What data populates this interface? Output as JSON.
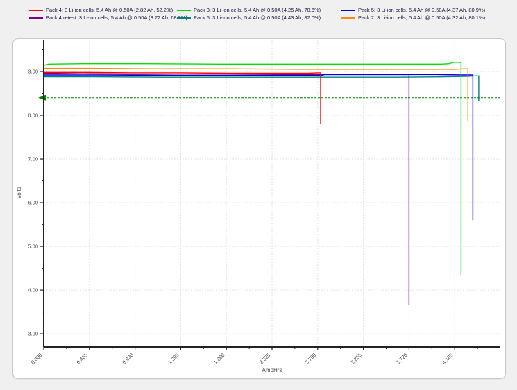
{
  "legend": {
    "items": [
      {
        "label": "Pack 4: 3 Li-ion cells, 5.4 Ah @ 0.50A (2.82 Ah, 52.2%)",
        "color": "#ff0000"
      },
      {
        "label": "Pack 3: 3 Li-ion cells, 5.4 Ah @ 0.50A (4.25 Ah, 78.6%)",
        "color": "#00e000"
      },
      {
        "label": "Pack 5: 3 Li-ion cells, 5.4 Ah @ 0.50A (4.37 Ah, 80.9%)",
        "color": "#0000d8"
      },
      {
        "label": "Pack 4 retest: 3 Li-ion cells, 5.4 Ah @ 0.50A (3.72 Ah, 68.9%)",
        "color": "#800080"
      },
      {
        "label": "Pack 6: 3 Li-ion cells, 5.4 Ah @ 0.50A (4.43 Ah, 82.0%)",
        "color": "#008080"
      },
      {
        "label": "Pack 2: 3 Li-ion cells, 5.4 Ah @ 0.50A (4.32 Ah, 80.1%)",
        "color": "#ff8c00"
      }
    ]
  },
  "chart_data": {
    "type": "line",
    "title": "",
    "xlabel": "AmpHrs",
    "ylabel": "Volts",
    "xlim": [
      0,
      4.65
    ],
    "ylim": [
      2.7,
      9.73
    ],
    "x_ticks": [
      0.0,
      0.465,
      0.93,
      1.395,
      1.86,
      2.325,
      2.79,
      3.255,
      3.72,
      4.185
    ],
    "x_tick_labels": [
      "0,000",
      "0,465",
      "0,930",
      "1,395",
      "1,860",
      "2,325",
      "2,790",
      "3,255",
      "3,720",
      "4,185"
    ],
    "x_minor_step": 0.2325,
    "y_ticks": [
      3,
      4,
      5,
      6,
      7,
      8,
      9
    ],
    "y_tick_labels": [
      "3.00",
      "4.00",
      "5.00",
      "6.00",
      "7.00",
      "8.00",
      "9.00"
    ],
    "y_minor_step": 0.5,
    "grid": true,
    "legend_position": "top",
    "cutoff_line": {
      "volts": 8.4,
      "color": "#008000",
      "style": "dashed"
    },
    "series": [
      {
        "name": "Pack 6: 3 Li-ion cells, 5.4 Ah @ 0.50A (4.43 Ah, 82.0%)",
        "color": "#008080",
        "points": [
          [
            0,
            8.88
          ],
          [
            0.5,
            8.88
          ],
          [
            1.2,
            8.87
          ],
          [
            2.5,
            8.87
          ],
          [
            3.6,
            8.87
          ],
          [
            4.1,
            8.88
          ],
          [
            4.33,
            8.89
          ],
          [
            4.39,
            8.9
          ],
          [
            4.43,
            8.9
          ],
          [
            4.43,
            8.33
          ]
        ]
      },
      {
        "name": "Pack 4 retest: 3 Li-ion cells, 5.4 Ah @ 0.50A (3.72 Ah, 68.9%)",
        "color": "#800080",
        "points": [
          [
            0,
            8.96
          ],
          [
            0.4,
            8.95
          ],
          [
            1.0,
            8.94
          ],
          [
            1.8,
            8.94
          ],
          [
            2.6,
            8.93
          ],
          [
            3.3,
            8.93
          ],
          [
            3.7,
            8.93
          ],
          [
            3.72,
            8.94
          ],
          [
            3.72,
            3.65
          ]
        ]
      },
      {
        "name": "Pack 5: 3 Li-ion cells, 5.4 Ah @ 0.50A (4.37 Ah, 80.9%)",
        "color": "#0000d8",
        "points": [
          [
            0,
            8.92
          ],
          [
            0.6,
            8.92
          ],
          [
            1.4,
            8.91
          ],
          [
            2.2,
            8.91
          ],
          [
            2.83,
            8.91
          ],
          [
            2.86,
            8.93
          ],
          [
            3.4,
            8.93
          ],
          [
            4.0,
            8.93
          ],
          [
            4.25,
            8.92
          ],
          [
            4.37,
            8.92
          ],
          [
            4.37,
            5.6
          ]
        ]
      },
      {
        "name": "Pack 4: 3 Li-ion cells, 5.4 Ah @ 0.50A (2.82 Ah, 52.2%)",
        "color": "#ff0000",
        "points": [
          [
            0,
            8.98
          ],
          [
            0.4,
            8.98
          ],
          [
            0.9,
            8.97
          ],
          [
            1.4,
            8.97
          ],
          [
            1.9,
            8.96
          ],
          [
            2.4,
            8.96
          ],
          [
            2.7,
            8.96
          ],
          [
            2.79,
            8.97
          ],
          [
            2.82,
            8.97
          ],
          [
            2.82,
            7.8
          ]
        ]
      },
      {
        "name": "Pack 2: 3 Li-ion cells, 5.4 Ah @ 0.50A (4.32 Ah, 80.1%)",
        "color": "#ff8c00",
        "points": [
          [
            0,
            9.07
          ],
          [
            0.5,
            9.07
          ],
          [
            1.1,
            9.06
          ],
          [
            1.9,
            9.06
          ],
          [
            2.6,
            9.05
          ],
          [
            3.3,
            9.05
          ],
          [
            3.9,
            9.05
          ],
          [
            4.2,
            9.05
          ],
          [
            4.28,
            9.06
          ],
          [
            4.32,
            9.06
          ],
          [
            4.32,
            7.85
          ]
        ]
      },
      {
        "name": "Pack 3: 3 Li-ion cells, 5.4 Ah @ 0.50A (4.25 Ah, 78.6%)",
        "color": "#00e000",
        "points": [
          [
            0,
            9.14
          ],
          [
            0.05,
            9.17
          ],
          [
            0.4,
            9.18
          ],
          [
            1.0,
            9.18
          ],
          [
            1.8,
            9.17
          ],
          [
            2.8,
            9.17
          ],
          [
            3.6,
            9.17
          ],
          [
            4.05,
            9.17
          ],
          [
            4.13,
            9.18
          ],
          [
            4.17,
            9.21
          ],
          [
            4.23,
            9.21
          ],
          [
            4.25,
            9.2
          ],
          [
            4.25,
            4.35
          ]
        ]
      }
    ]
  }
}
